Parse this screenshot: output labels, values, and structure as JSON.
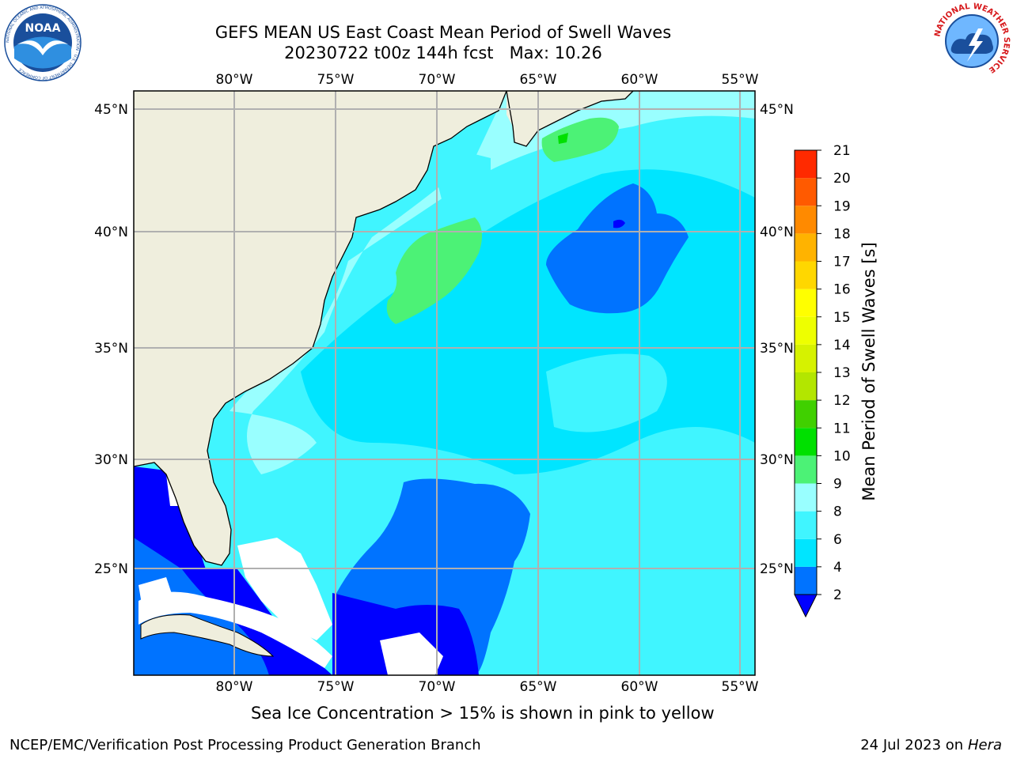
{
  "title": {
    "line1": "GEFS MEAN US East Coast Mean Period of Swell Waves",
    "line2": "20230722 t00z 144h fcst   Max: 10.26"
  },
  "logos": {
    "left": {
      "name": "NOAA",
      "ring_text": "NATIONAL OCEANIC AND ATMOSPHERIC ADMINISTRATION · U.S. DEPARTMENT OF COMMERCE",
      "color": "#1a4f9c"
    },
    "right": {
      "name": "NATIONAL WEATHER SERVICE",
      "color": "#d7191c"
    }
  },
  "map": {
    "lon_ticks": [
      "80°W",
      "75°W",
      "70°W",
      "65°W",
      "60°W",
      "55°W"
    ],
    "lat_ticks": [
      "45°N",
      "40°N",
      "35°N",
      "30°N",
      "25°N"
    ],
    "land_color": "#efeedd",
    "missing_color": "#ffffff"
  },
  "colorbar": {
    "label": "Mean Period of Swell Waves [s]",
    "levels": [
      "2",
      "4",
      "6",
      "8",
      "9",
      "10",
      "11",
      "12",
      "13",
      "14",
      "15",
      "16",
      "17",
      "18",
      "19",
      "20",
      "21"
    ],
    "colors": [
      "#0073ff",
      "#00e5ff",
      "#40f5ff",
      "#99ffff",
      "#4cf276",
      "#00e000",
      "#40d000",
      "#b3e600",
      "#d6f200",
      "#eeff00",
      "#ffff00",
      "#ffd700",
      "#ffb300",
      "#ff8a00",
      "#ff5a00",
      "#ff2a00"
    ],
    "under_color": "#0000ff"
  },
  "footnote": "Sea Ice Concentration > 15% is shown in pink to yellow",
  "credits": {
    "left": "NCEP/EMC/Verification Post Processing Product Generation Branch",
    "right_date": "24 Jul 2023 on ",
    "right_host": "Hera"
  }
}
